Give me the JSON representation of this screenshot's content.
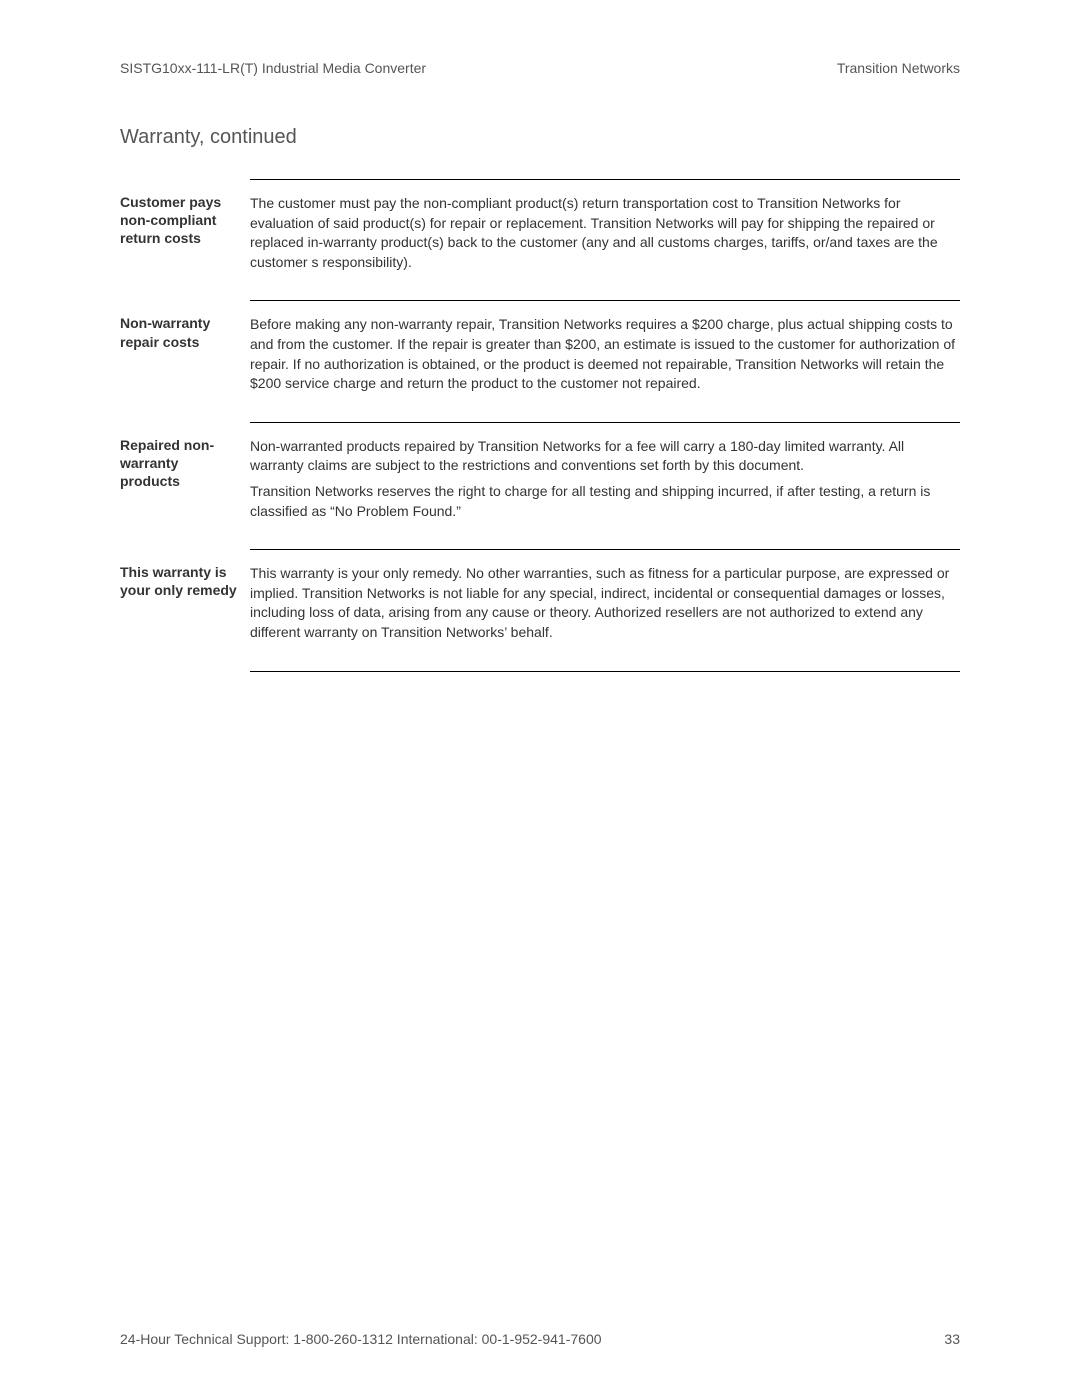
{
  "header": {
    "left": "SISTG10xx-111-LR(T)  Industrial Media Converter",
    "right": "Transition Networks"
  },
  "sectionTitle": "Warranty, continued",
  "rows": [
    {
      "label": "Customer pays non-compliant return costs",
      "paragraphs": [
        "The customer must pay the non-compliant product(s) return transportation cost to Transition Networks for evaluation of said product(s) for repair or replacement.  Transition Networks will pay for shipping the repaired or replaced in-warranty product(s) back to the customer (any and all customs charges, tariffs, or/and taxes are the customer s responsibility)."
      ]
    },
    {
      "label": "Non-warranty repair costs",
      "paragraphs": [
        "Before making any non-warranty repair, Transition Networks requires a $200 charge, plus actual shipping costs to and from the customer.  If the repair is greater than $200, an estimate is issued to the customer for authorization of repair.  If no authorization is obtained, or the product is deemed not repairable, Transition Networks will retain the $200 service charge and return the product to the customer not repaired."
      ]
    },
    {
      "label": "Repaired non-warranty products",
      "paragraphs": [
        "Non-warranted products repaired by Transition Networks for a fee will carry a 180-day limited warranty.  All warranty claims are subject to the restrictions and conventions set forth by this document.",
        "Transition Networks reserves the right to charge for all testing and shipping incurred, if after testing, a return is classified as “No Problem Found.”"
      ]
    },
    {
      "label": "This warranty is your only remedy",
      "paragraphs": [
        "This warranty is your only remedy.  No other warranties, such as fitness for a particular purpose, are expressed or implied.  Transition Networks is not liable for any special, indirect, incidental or consequential damages or losses, including loss of data, arising from any cause or theory.  Authorized resellers are not authorized to extend any different warranty on Transition Networks’ behalf."
      ]
    }
  ],
  "footer": {
    "left": "24-Hour Technical Support:   1-800-260-1312   International: 00-1-952-941-7600",
    "pageNumber": "33"
  }
}
